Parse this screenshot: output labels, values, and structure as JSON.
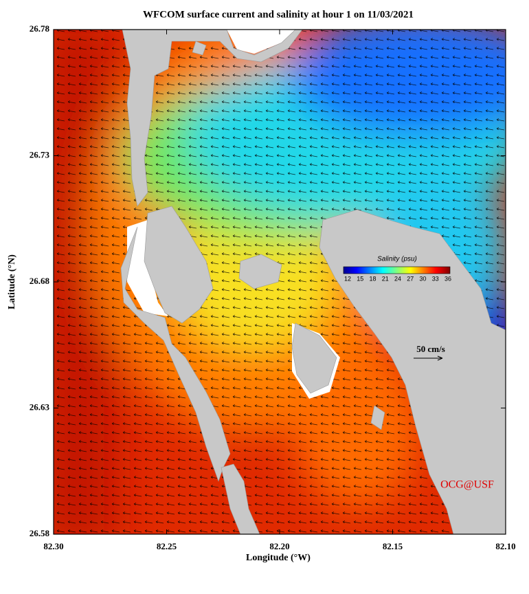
{
  "title": "WFCOM surface current and salinity at hour 1 on 11/03/2021",
  "x_axis": {
    "label": "Longitude (°W)",
    "lim": [
      82.3,
      82.1
    ],
    "ticks": [
      {
        "value": 82.3,
        "label": "82.30"
      },
      82.25,
      {
        "value": 82.2,
        "label": "82.20"
      },
      82.15,
      {
        "value": 82.1,
        "label": "82.10"
      }
    ]
  },
  "y_axis": {
    "label": "Latitude (°N)",
    "lim": [
      26.58,
      26.78
    ],
    "ticks": [
      26.58,
      26.63,
      26.68,
      26.73,
      26.78
    ]
  },
  "colorbar": {
    "label": "Salinity (psu)",
    "lim": [
      12,
      36
    ],
    "ticks": [
      12,
      15,
      18,
      21,
      24,
      27,
      30,
      33,
      36
    ]
  },
  "scale_label": "50 cm/s",
  "credit": "OCG@USF"
}
